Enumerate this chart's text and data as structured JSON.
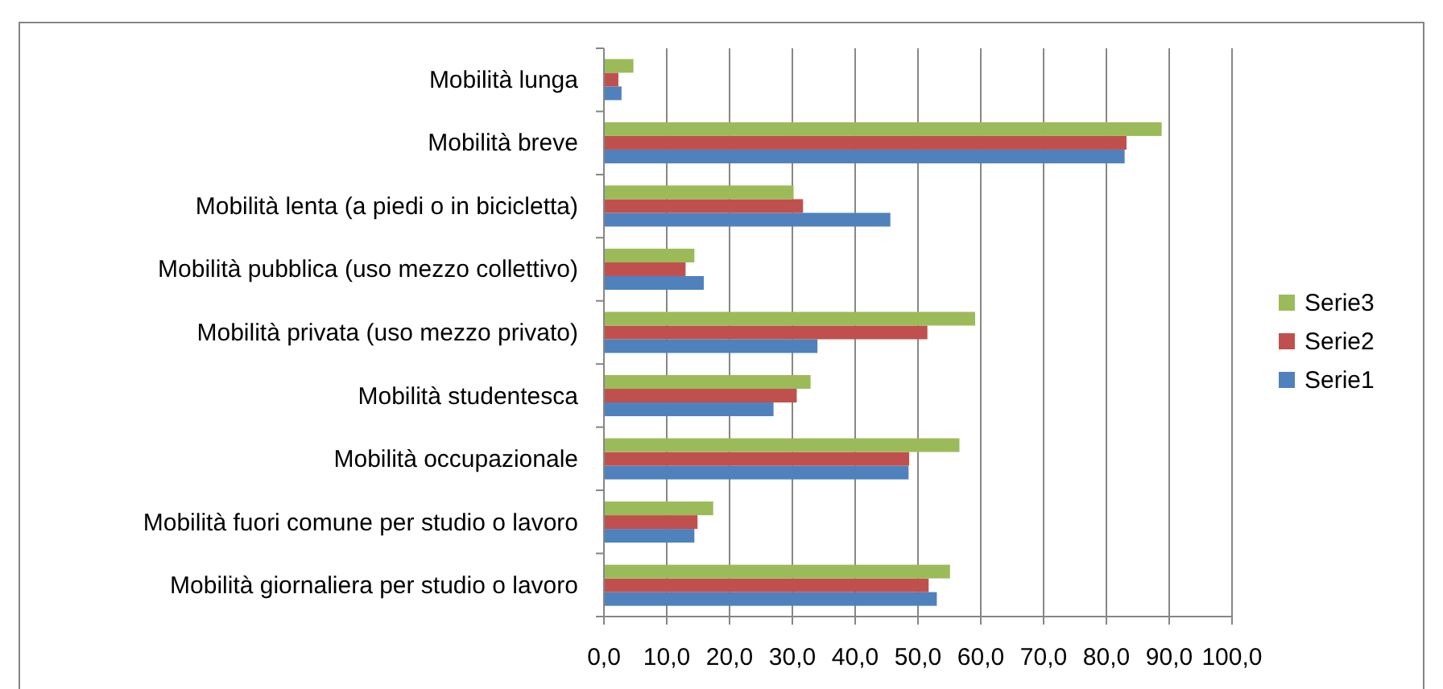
{
  "chart_data": {
    "type": "bar",
    "orientation": "horizontal",
    "categories": [
      "Mobilità lunga",
      "Mobilità breve",
      "Mobilità lenta (a piedi o in bicicletta)",
      "Mobilità pubblica (uso mezzo collettivo)",
      "Mobilità privata (uso mezzo privato)",
      "Mobilità studentesca",
      "Mobilità occupazionale",
      "Mobilità fuori comune per studio o lavoro",
      "Mobilità giornaliera per studio o lavoro"
    ],
    "series": [
      {
        "name": "Serie1",
        "color": "#4f81bd",
        "values": [
          2.8,
          82.9,
          45.6,
          15.9,
          34.0,
          27.0,
          48.5,
          14.4,
          53.0
        ]
      },
      {
        "name": "Serie2",
        "color": "#c0504d",
        "values": [
          2.3,
          83.2,
          31.7,
          13.0,
          51.5,
          30.7,
          48.6,
          14.9,
          51.7
        ]
      },
      {
        "name": "Serie3",
        "color": "#9bbb59",
        "values": [
          4.7,
          88.8,
          30.2,
          14.4,
          59.1,
          32.9,
          56.6,
          17.4,
          55.1
        ]
      }
    ],
    "xlim": [
      0,
      100
    ],
    "xticks": [
      {
        "value": 0,
        "label": "0,0"
      },
      {
        "value": 10,
        "label": "10,0"
      },
      {
        "value": 20,
        "label": "20,0"
      },
      {
        "value": 30,
        "label": "30,0"
      },
      {
        "value": 40,
        "label": "40,0"
      },
      {
        "value": 50,
        "label": "50,0"
      },
      {
        "value": 60,
        "label": "60,0"
      },
      {
        "value": 70,
        "label": "70,0"
      },
      {
        "value": 80,
        "label": "80,0"
      },
      {
        "value": 90,
        "label": "90,0"
      },
      {
        "value": 100,
        "label": "100,0"
      }
    ],
    "grid": "x",
    "legend": "right"
  }
}
